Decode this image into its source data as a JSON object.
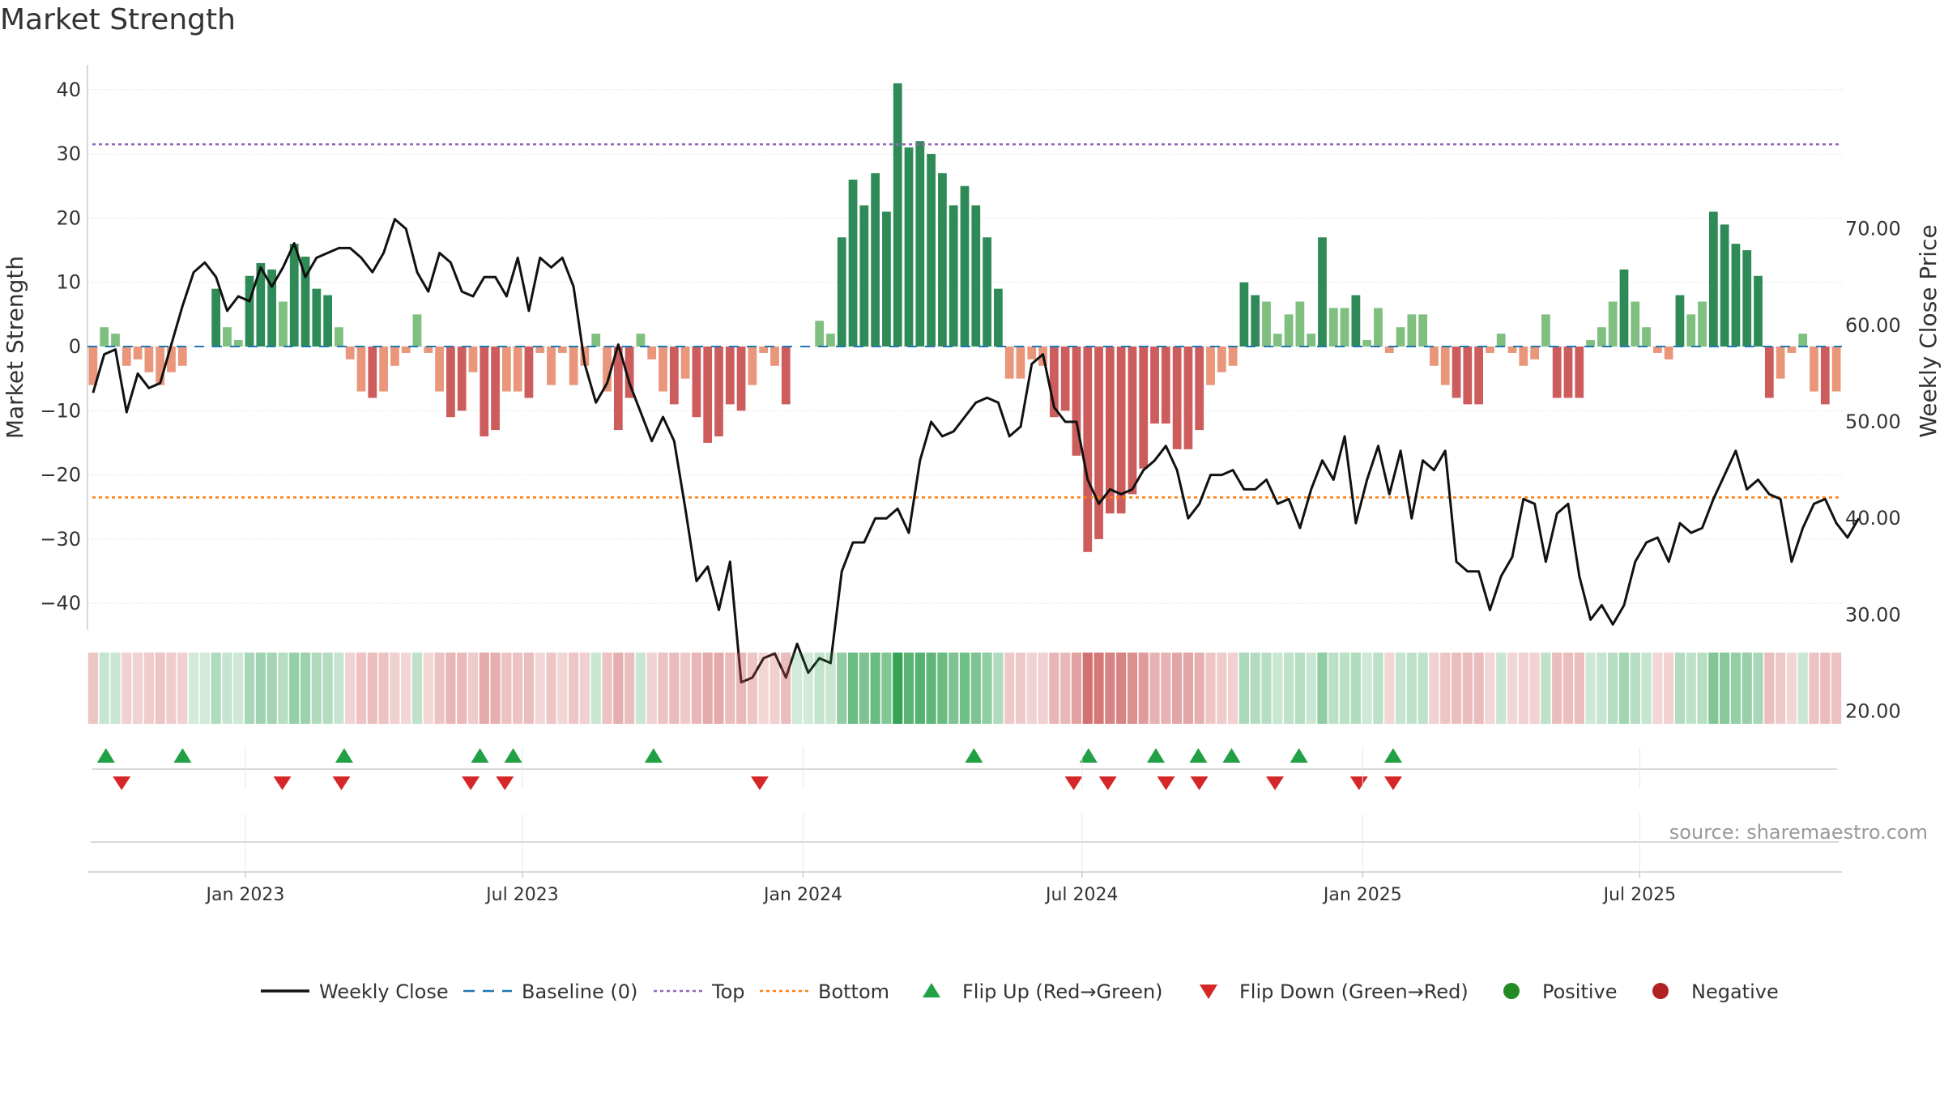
{
  "chart_data": {
    "type": "bar",
    "title": "Market Strength",
    "source": "source: sharemaestro.com",
    "ylabel": "Market Strength",
    "ylabel_right": "Weekly Close Price",
    "ylim": [
      -44,
      44
    ],
    "ylim_right": [
      20,
      75.5
    ],
    "yticks": [
      40,
      30,
      20,
      10,
      0,
      -10,
      -20,
      -30,
      -40
    ],
    "ytick_labels": [
      "40",
      "30",
      "20",
      "10",
      "0",
      "−10",
      "−20",
      "−30",
      "−40"
    ],
    "yticks_right": [
      70,
      60,
      50,
      40,
      30,
      20
    ],
    "ytick_labels_right": [
      "70.00",
      "60.00",
      "50.00",
      "40.00",
      "30.00",
      "20.00"
    ],
    "top_line": 31.5,
    "bottom_line": -23.5,
    "x_start_week": -27.5,
    "x_end_week": 162.5,
    "xticks": [
      {
        "week": -10.4,
        "label": "Jan 2023"
      },
      {
        "week": 19.6,
        "label": "Jul 2023"
      },
      {
        "week": 50.0,
        "label": "Jan 2024"
      },
      {
        "week": 80.2,
        "label": "Jul 2024"
      },
      {
        "week": 110.6,
        "label": "Jan 2025"
      },
      {
        "week": 140.6,
        "label": "Jul 2025"
      }
    ],
    "strength": [
      -6,
      3,
      2,
      -3,
      -2,
      -4,
      -6,
      -4,
      -3,
      0,
      0,
      9,
      3,
      1,
      11,
      13,
      12,
      7,
      16,
      14,
      9,
      8,
      3,
      -2,
      -7,
      -8,
      -7,
      -3,
      -1,
      5,
      -1,
      -7,
      -11,
      -10,
      -4,
      -14,
      -13,
      -7,
      -7,
      -8,
      -1,
      -6,
      -1,
      -6,
      -3,
      2,
      -7,
      -13,
      -8,
      2,
      -2,
      -7,
      -9,
      -5,
      -11,
      -15,
      -14,
      -9,
      -10,
      -6,
      -1,
      -3,
      -9,
      0,
      0,
      4,
      2,
      17,
      26,
      22,
      27,
      21,
      41,
      31,
      32,
      30,
      27,
      22,
      25,
      22,
      17,
      9,
      -5,
      -5,
      -2,
      -3,
      -11,
      -10,
      -17,
      -32,
      -30,
      -26,
      -26,
      -23,
      -19,
      -12,
      -12,
      -16,
      -16,
      -13,
      -6,
      -4,
      -3,
      10,
      8,
      7,
      2,
      5,
      7,
      2,
      17,
      6,
      6,
      8,
      1,
      6,
      -1,
      3,
      5,
      5,
      -3,
      -6,
      -8,
      -9,
      -9,
      -1,
      2,
      -1,
      -3,
      -2,
      5,
      -8,
      -8,
      -8,
      1,
      3,
      7,
      12,
      7,
      3,
      -1,
      -2,
      8,
      5,
      7,
      21,
      19,
      16,
      15,
      11,
      -8,
      -5,
      -1,
      2,
      -7,
      -9,
      -7
    ],
    "close": [
      53,
      57,
      57.5,
      51,
      55,
      53.5,
      54,
      58,
      62,
      65.5,
      66.5,
      65,
      61.5,
      63,
      62.5,
      66,
      64,
      66,
      68.5,
      65,
      67,
      67.5,
      68,
      68,
      67,
      65.5,
      67.5,
      71,
      70,
      65.5,
      63.5,
      67.5,
      66.5,
      63.5,
      63,
      65,
      65,
      63,
      67,
      61.5,
      67,
      66,
      67,
      64,
      56,
      52,
      54,
      58,
      54,
      51,
      48,
      50.5,
      48,
      41,
      33.5,
      35,
      30.5,
      35.5,
      23,
      23.5,
      25.5,
      26,
      23.5,
      27,
      24,
      25.5,
      25,
      34.5,
      37.5,
      37.5,
      40,
      40,
      41,
      38.5,
      46,
      50,
      48.5,
      49,
      50.5,
      52,
      52.5,
      52,
      48.5,
      49.5,
      56,
      57,
      51.5,
      50,
      50,
      44,
      41.5,
      43,
      42.5,
      43,
      45,
      46,
      47.5,
      45,
      40,
      41.5,
      44.5,
      44.5,
      45,
      43,
      43,
      44,
      41.5,
      42,
      39,
      43,
      46,
      44,
      48.5,
      39.5,
      44,
      47.5,
      42.5,
      47,
      40,
      46,
      45,
      47,
      35.5,
      34.5,
      34.5,
      30.5,
      34,
      36,
      42,
      41.5,
      35.5,
      40.5,
      41.5,
      34,
      29.5,
      31,
      29,
      31,
      35.5,
      37.5,
      38,
      35.5,
      39.5,
      38.5,
      39,
      42,
      44.5,
      47,
      43,
      44,
      42.5,
      42,
      35.5,
      39,
      41.5,
      42,
      39.5,
      38,
      40
    ],
    "heat_strip": [
      -6,
      3,
      2,
      -3,
      -2,
      -4,
      -6,
      -4,
      -3,
      0,
      0,
      9,
      3,
      1,
      11,
      13,
      12,
      7,
      16,
      14,
      9,
      8,
      3,
      -2,
      -7,
      -8,
      -7,
      -3,
      -1,
      5,
      -1,
      -7,
      -11,
      -10,
      -4,
      -14,
      -13,
      -7,
      -7,
      -8,
      -1,
      -6,
      -1,
      -6,
      -3,
      2,
      -7,
      -13,
      -8,
      2,
      -2,
      -7,
      -9,
      -5,
      -11,
      -15,
      -14,
      -9,
      -10,
      -6,
      -1,
      -3,
      -9,
      0,
      0,
      4,
      2,
      17,
      26,
      22,
      27,
      21,
      41,
      31,
      32,
      30,
      27,
      22,
      25,
      22,
      17,
      9,
      -5,
      -5,
      -2,
      -3,
      -11,
      -10,
      -17,
      -32,
      -30,
      -26,
      -26,
      -23,
      -19,
      -12,
      -12,
      -16,
      -16,
      -13,
      -6,
      -4,
      -3,
      10,
      8,
      7,
      2,
      5,
      7,
      2,
      17,
      6,
      6,
      8,
      1,
      6,
      -1,
      3,
      5,
      5,
      -3,
      -6,
      -8,
      -9,
      -9,
      -1,
      2,
      -1,
      -3,
      -2,
      5,
      -8,
      -8,
      -8,
      1,
      3,
      7,
      12,
      7,
      3,
      -1,
      -2,
      8,
      5,
      7,
      21,
      19,
      16,
      15,
      11,
      -8,
      -5,
      -1,
      2,
      -7,
      -9,
      -7
    ],
    "flip_up_weeks": [
      -25.5,
      -17.2,
      0.3,
      15.0,
      18.6,
      33.8,
      68.5,
      80.9,
      88.2,
      92.8,
      96.4,
      103.7,
      113.9
    ],
    "flip_down_weeks": [
      -23.8,
      -6.4,
      0.0,
      14.0,
      17.7,
      45.3,
      79.3,
      83.0,
      89.3,
      92.9,
      101.1,
      110.2,
      113.9
    ],
    "series": [
      {
        "name": "Weekly Close",
        "kind": "line",
        "color": "#111111"
      },
      {
        "name": "Baseline (0)",
        "kind": "dashed",
        "color": "#1f77b4"
      },
      {
        "name": "Top",
        "kind": "dotted",
        "color": "#9467bd"
      },
      {
        "name": "Bottom",
        "kind": "dotted",
        "color": "#ff7f0e"
      },
      {
        "name": "Flip Up (Red→Green)",
        "kind": "triangle-up",
        "color": "#22a045"
      },
      {
        "name": "Flip Down (Green→Red)",
        "kind": "triangle-down",
        "color": "#d62728"
      },
      {
        "name": "Positive",
        "kind": "dot",
        "color": "#228b22"
      },
      {
        "name": "Negative",
        "kind": "dot",
        "color": "#b22222"
      }
    ],
    "colors": {
      "pos_dark": "#2e8b57",
      "pos_light": "#7fbf7f",
      "neg_dark": "#cd5c5c",
      "neg_light": "#e9967a",
      "grid": "#e6e6e6",
      "axis": "#cccccc"
    }
  }
}
